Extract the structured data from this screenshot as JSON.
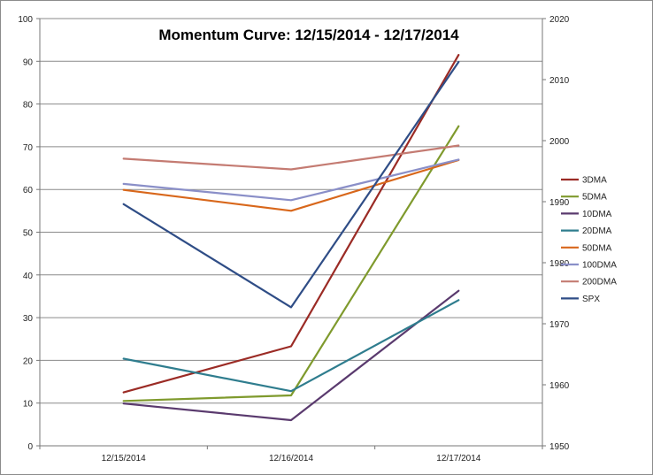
{
  "chart_data": {
    "type": "line",
    "title": "Momentum Curve:  12/15/2014 - 12/17/2014",
    "categories": [
      "12/15/2014",
      "12/16/2014",
      "12/17/2014"
    ],
    "ylim": [
      0,
      100
    ],
    "y_ticks": [
      "0",
      "10",
      "20",
      "30",
      "40",
      "50",
      "60",
      "70",
      "80",
      "90",
      "100"
    ],
    "y2lim": [
      1950,
      2020
    ],
    "y2_ticks": [
      "1950",
      "1960",
      "1970",
      "1980",
      "1990",
      "2000",
      "2010",
      "2020"
    ],
    "grid": true,
    "legend_position": "right",
    "series": [
      {
        "name": "3DMA",
        "color": "#9b2b25",
        "axis": "left",
        "values": [
          12.5,
          23.3,
          91.5
        ]
      },
      {
        "name": "5DMA",
        "color": "#7f9a2d",
        "axis": "left",
        "values": [
          10.5,
          11.8,
          74.8
        ]
      },
      {
        "name": "10DMA",
        "color": "#5a3a6e",
        "axis": "left",
        "values": [
          9.9,
          6.0,
          36.3
        ]
      },
      {
        "name": "20DMA",
        "color": "#2f7d8e",
        "axis": "left",
        "values": [
          20.4,
          12.8,
          34.1
        ]
      },
      {
        "name": "50DMA",
        "color": "#d8671b",
        "axis": "left",
        "values": [
          59.9,
          55.0,
          66.9
        ]
      },
      {
        "name": "100DMA",
        "color": "#8a8fc8",
        "axis": "left",
        "values": [
          61.3,
          57.5,
          67.0
        ]
      },
      {
        "name": "200DMA",
        "color": "#c47b72",
        "axis": "left",
        "values": [
          67.2,
          64.7,
          70.3
        ]
      },
      {
        "name": "SPX",
        "color": "#2f4d86",
        "axis": "right",
        "values": [
          1989.6,
          1972.7,
          2012.9
        ]
      }
    ]
  }
}
